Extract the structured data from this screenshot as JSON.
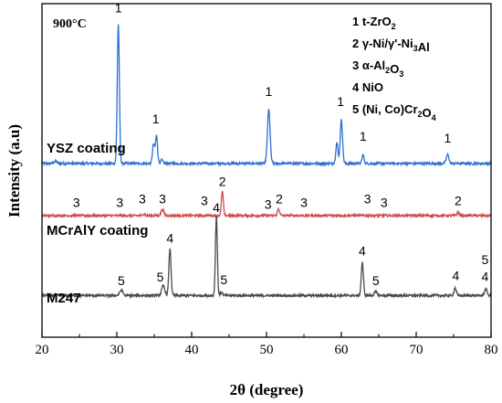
{
  "chart_data": {
    "type": "line",
    "xlabel": "2θ (degree)",
    "ylabel": "Intensity (a.u)",
    "xlim": [
      20,
      80
    ],
    "x_ticks": [
      20,
      30,
      40,
      50,
      60,
      70,
      80
    ],
    "temperature": "900°C",
    "grid": false,
    "legend_position": "top-right",
    "legend": [
      {
        "num": "1",
        "parts": [
          [
            "t-ZrO",
            ""
          ],
          [
            "2",
            "sub"
          ]
        ]
      },
      {
        "num": "2",
        "parts": [
          [
            "γ-Ni/γ'-Ni",
            ""
          ],
          [
            "3",
            "sub"
          ],
          [
            "Al",
            ""
          ]
        ]
      },
      {
        "num": "3",
        "parts": [
          [
            "α-Al",
            ""
          ],
          [
            "2",
            "sub"
          ],
          [
            "O",
            ""
          ],
          [
            "3",
            "sub"
          ]
        ]
      },
      {
        "num": "4",
        "parts": [
          [
            "NiO",
            ""
          ]
        ]
      },
      {
        "num": "5",
        "parts": [
          [
            "(Ni, Co)Cr",
            ""
          ],
          [
            "2",
            "sub"
          ],
          [
            "O",
            ""
          ],
          [
            "4",
            "sub"
          ]
        ]
      }
    ],
    "series": [
      {
        "name": "YSZ coating",
        "color": "#2f6fd0",
        "baseline": 5.0,
        "peaks": [
          {
            "x": 21.8,
            "h": 0.06,
            "w": 0.3
          },
          {
            "x": 30.2,
            "h": 4.0,
            "w": 0.2
          },
          {
            "x": 34.9,
            "h": 0.55,
            "w": 0.2
          },
          {
            "x": 35.3,
            "h": 0.8,
            "w": 0.2
          },
          {
            "x": 36.0,
            "h": 0.1,
            "w": 0.2
          },
          {
            "x": 50.3,
            "h": 1.55,
            "w": 0.25
          },
          {
            "x": 59.4,
            "h": 0.6,
            "w": 0.2
          },
          {
            "x": 60.0,
            "h": 1.25,
            "w": 0.22
          },
          {
            "x": 62.9,
            "h": 0.25,
            "w": 0.2
          },
          {
            "x": 74.2,
            "h": 0.25,
            "w": 0.25
          }
        ],
        "labels": [
          {
            "x": 30.2,
            "y": 9.35,
            "text": "1"
          },
          {
            "x": 35.2,
            "y": 6.15,
            "text": "1"
          },
          {
            "x": 50.3,
            "y": 6.95,
            "text": "1"
          },
          {
            "x": 59.9,
            "y": 6.65,
            "text": "1"
          },
          {
            "x": 62.9,
            "y": 5.65,
            "text": "1"
          },
          {
            "x": 74.2,
            "y": 5.6,
            "text": "1"
          }
        ]
      },
      {
        "name": "MCrAlY coating",
        "color": "#d24a4a",
        "baseline": 3.5,
        "peaks": [
          {
            "x": 33.6,
            "h": 0.05,
            "w": 0.2
          },
          {
            "x": 36.1,
            "h": 0.18,
            "w": 0.25
          },
          {
            "x": 44.1,
            "h": 0.7,
            "w": 0.18
          },
          {
            "x": 51.6,
            "h": 0.2,
            "w": 0.2
          },
          {
            "x": 75.6,
            "h": 0.1,
            "w": 0.2
          }
        ],
        "labels": [
          {
            "x": 24.6,
            "y": 3.75,
            "text": "3"
          },
          {
            "x": 30.4,
            "y": 3.75,
            "text": "3"
          },
          {
            "x": 33.4,
            "y": 3.85,
            "text": "3"
          },
          {
            "x": 36.1,
            "y": 3.85,
            "text": "3"
          },
          {
            "x": 41.7,
            "y": 3.8,
            "text": "3"
          },
          {
            "x": 44.1,
            "y": 4.35,
            "text": "2"
          },
          {
            "x": 50.2,
            "y": 3.7,
            "text": "3"
          },
          {
            "x": 51.7,
            "y": 3.85,
            "text": "2"
          },
          {
            "x": 55.0,
            "y": 3.75,
            "text": "3"
          },
          {
            "x": 63.5,
            "y": 3.85,
            "text": "3"
          },
          {
            "x": 65.7,
            "y": 3.75,
            "text": "3"
          },
          {
            "x": 75.6,
            "y": 3.8,
            "text": "2"
          }
        ]
      },
      {
        "name": "M247",
        "color": "#4a4a4a",
        "baseline": 1.2,
        "peaks": [
          {
            "x": 30.6,
            "h": 0.15,
            "w": 0.3
          },
          {
            "x": 36.2,
            "h": 0.28,
            "w": 0.3
          },
          {
            "x": 37.1,
            "h": 1.35,
            "w": 0.2
          },
          {
            "x": 43.3,
            "h": 2.3,
            "w": 0.18
          },
          {
            "x": 44.0,
            "h": 0.1,
            "w": 0.2
          },
          {
            "x": 62.8,
            "h": 0.95,
            "w": 0.2
          },
          {
            "x": 64.6,
            "h": 0.1,
            "w": 0.3
          },
          {
            "x": 75.2,
            "h": 0.22,
            "w": 0.22
          },
          {
            "x": 79.3,
            "h": 0.18,
            "w": 0.25
          }
        ],
        "labels": [
          {
            "x": 30.6,
            "y": 1.5,
            "text": "5"
          },
          {
            "x": 35.8,
            "y": 1.6,
            "text": "5"
          },
          {
            "x": 37.1,
            "y": 2.72,
            "text": "4"
          },
          {
            "x": 43.3,
            "y": 3.6,
            "text": "4"
          },
          {
            "x": 44.3,
            "y": 1.52,
            "text": "5"
          },
          {
            "x": 62.8,
            "y": 2.35,
            "text": "4"
          },
          {
            "x": 64.6,
            "y": 1.5,
            "text": "5"
          },
          {
            "x": 75.3,
            "y": 1.65,
            "text": "4"
          },
          {
            "x": 79.2,
            "y": 2.1,
            "text": "5"
          },
          {
            "x": 79.2,
            "y": 1.62,
            "text": "4"
          }
        ]
      }
    ]
  }
}
